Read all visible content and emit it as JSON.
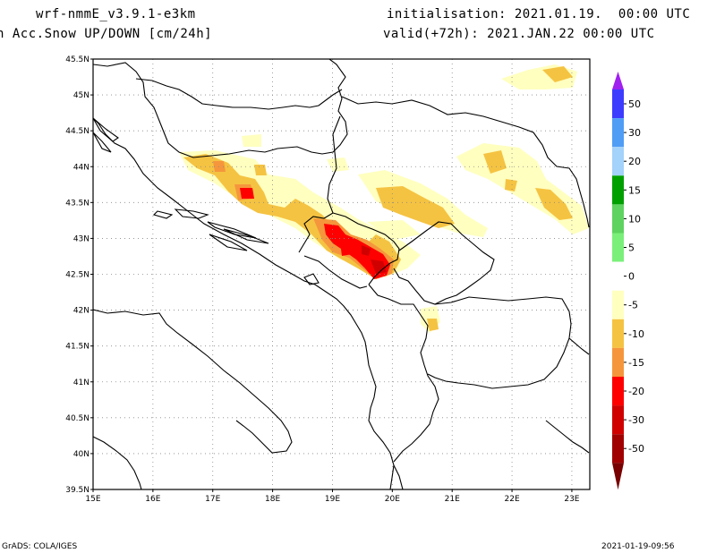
{
  "header": {
    "model": "wrf-nmmE_v3.9.1-e3km",
    "field": "n Acc.Snow UP/DOWN [cm/24h]",
    "init": "initialisation: 2021.01.19.  00:00 UTC",
    "valid": "valid(+72h): 2021.JAN.22 00:00 UTC"
  },
  "map": {
    "lon_range": [
      15,
      23.3
    ],
    "lat_range": [
      39.5,
      45.5
    ],
    "lon_ticks": [
      "15E",
      "16E",
      "17E",
      "18E",
      "19E",
      "20E",
      "21E",
      "22E",
      "23E"
    ],
    "lat_ticks": [
      "39.5N",
      "40N",
      "40.5N",
      "41N",
      "41.5N",
      "42N",
      "42.5N",
      "43N",
      "43.5N",
      "44N",
      "44.5N",
      "45N",
      "45.5N"
    ],
    "grid": "dotted"
  },
  "colorbar": {
    "labels": [
      "50",
      "30",
      "20",
      "15",
      "10",
      "5",
      "0",
      "-5",
      "-10",
      "-15",
      "-20",
      "-30",
      "-50"
    ],
    "colors": [
      "#a020f0",
      "#3c3cff",
      "#4f9df5",
      "#a3d2fa",
      "#00a000",
      "#5fd35f",
      "#7af07a",
      "#ffffff",
      "#ffffc0",
      "#f5c342",
      "#f5963c",
      "#ff0000",
      "#d00000",
      "#a00000",
      "#780000"
    ]
  },
  "footer": {
    "left": "GrADS: COLA/IGES",
    "right": "2021-01-19-09:56"
  }
}
